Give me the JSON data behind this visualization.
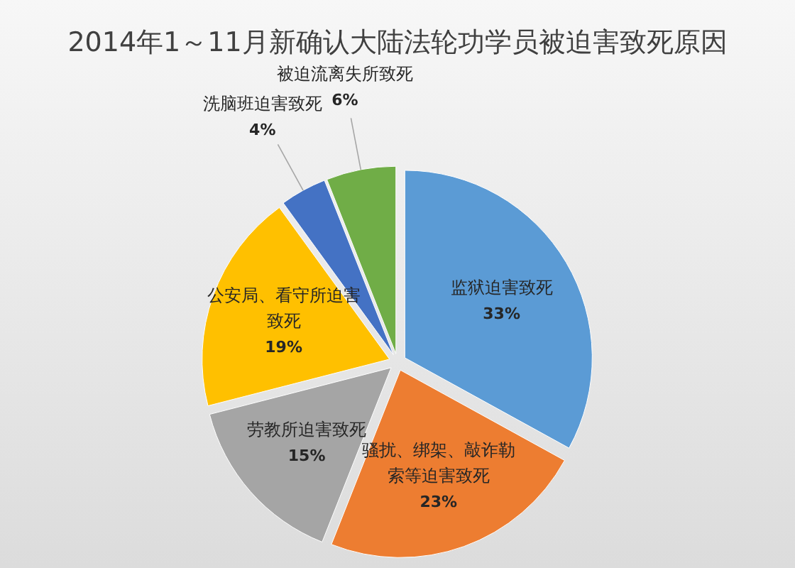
{
  "chart_data": {
    "type": "pie",
    "title": "2014年1～11月新确认大陆法轮功学员被迫害致死原因",
    "categories": [
      "监狱迫害致死",
      "骚扰、绑架、敲诈勒索等迫害致死",
      "劳教所迫害致死",
      "公安局、看守所迫害致死",
      "洗脑班迫害致死",
      "被迫流离失所致死"
    ],
    "values": [
      33,
      23,
      15,
      19,
      4,
      6
    ],
    "colors": [
      "#5b9bd5",
      "#ed7d31",
      "#a5a5a5",
      "#ffc000",
      "#4472c4",
      "#70ad47"
    ],
    "value_labels": [
      "33%",
      "23%",
      "15%",
      "19%",
      "4%",
      "6%"
    ]
  }
}
